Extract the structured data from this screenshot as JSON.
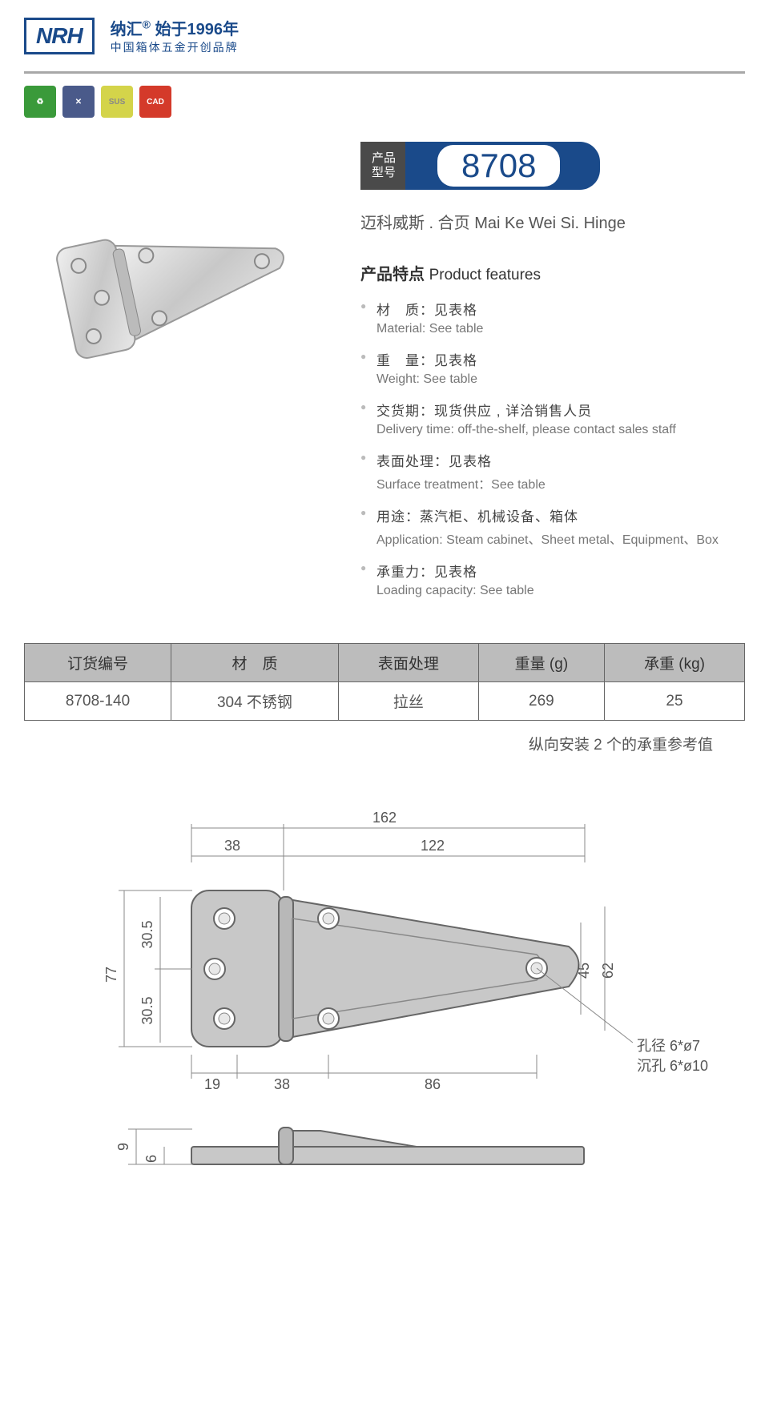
{
  "header": {
    "logo": "NRH",
    "brand_cn": "纳汇",
    "brand_year": "始于1996年",
    "brand_sub": "中国箱体五金开创品牌"
  },
  "badges": [
    "♻",
    "✕",
    "SUS",
    "CAD"
  ],
  "model": {
    "label_l1": "产品",
    "label_l2": "型号",
    "number": "8708"
  },
  "subtitle": "迈科威斯 . 合页   Mai Ke Wei Si. Hinge",
  "features": {
    "title_cn": "产品特点",
    "title_en": "Product features",
    "items": [
      {
        "cn": "材　质：见表格",
        "en": "Material: See table"
      },
      {
        "cn": "重　量：见表格",
        "en": "Weight: See table"
      },
      {
        "cn": "交货期：现货供应 , 详洽销售人员",
        "en": "Delivery time: off-the-shelf, please contact sales staff"
      },
      {
        "cn": "表面处理：见表格",
        "en": "Surface treatment：See table"
      },
      {
        "cn": "用途：蒸汽柜、机械设备、箱体",
        "en": "Application: Steam cabinet、Sheet metal、Equipment、Box"
      },
      {
        "cn": "承重力：见表格",
        "en": "Loading capacity: See table"
      }
    ]
  },
  "table": {
    "headers": [
      "订货编号",
      "材　质",
      "表面处理",
      "重量 (g)",
      "承重 (kg)"
    ],
    "rows": [
      [
        "8708-140",
        "304 不锈钢",
        "拉丝",
        "269",
        "25"
      ]
    ],
    "note": "纵向安装 2 个的承重参考值"
  },
  "drawing": {
    "dims": {
      "total_w": "162",
      "left_w": "38",
      "right_w": "122",
      "total_h": "77",
      "half_h1": "30.5",
      "half_h2": "30.5",
      "inner_h": "62",
      "inner_h2": "45",
      "bot_19": "19",
      "bot_38": "38",
      "bot_86": "86",
      "side_h": "9",
      "side_h2": "6",
      "hole_note1": "孔径 6*ø7",
      "hole_note2": "沉孔 6*ø10"
    },
    "colors": {
      "fill": "#c8c8c8",
      "stroke": "#666",
      "dim": "#888",
      "text": "#555"
    }
  }
}
